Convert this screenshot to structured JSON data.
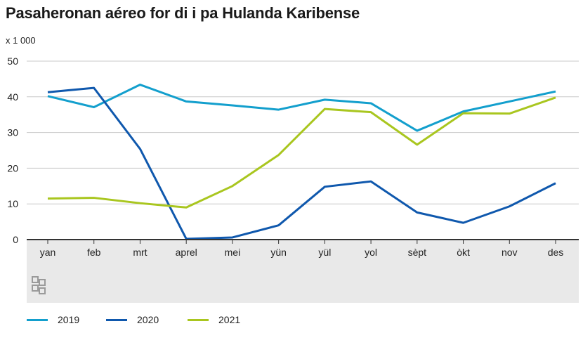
{
  "title": "Pasaheronan aéreo for di i pa Hulanda Karibense",
  "chart_data": {
    "type": "line",
    "title": "Pasaheronan aéreo for di i pa Hulanda Karibense",
    "unit_label": "x 1 000",
    "xlabel": "",
    "ylabel": "x 1 000",
    "ylim": [
      0,
      50
    ],
    "y_ticks": [
      "0",
      "10",
      "20",
      "30",
      "40",
      "50"
    ],
    "grid": true,
    "legend_position": "bottom",
    "categories": [
      "yan",
      "feb",
      "mrt",
      "aprel",
      "mei",
      "yün",
      "yül",
      "yol",
      "sèpt",
      "òkt",
      "nov",
      "des"
    ],
    "series": [
      {
        "name": "2019",
        "color": "#139fcd",
        "values": [
          40.2,
          37.1,
          43.4,
          38.7,
          37.6,
          36.4,
          39.2,
          38.2,
          30.5,
          35.9,
          38.7,
          41.5
        ]
      },
      {
        "name": "2020",
        "color": "#0f58ad",
        "values": [
          41.3,
          42.5,
          25.4,
          0.2,
          0.6,
          4.0,
          14.8,
          16.3,
          7.6,
          4.7,
          9.3,
          15.8
        ]
      },
      {
        "name": "2021",
        "color": "#a9c61f",
        "values": [
          11.5,
          11.7,
          10.2,
          9.0,
          15.0,
          23.7,
          36.6,
          35.7,
          26.6,
          35.4,
          35.3,
          39.8
        ]
      }
    ]
  }
}
